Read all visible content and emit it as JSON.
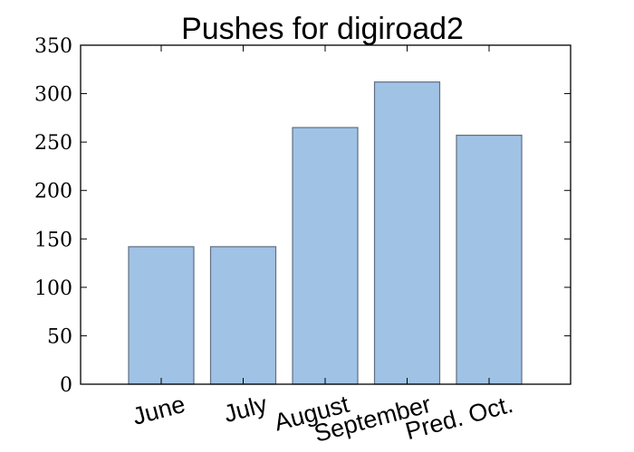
{
  "chart_data": {
    "type": "bar",
    "title": "Pushes for digiroad2",
    "xlabel": "",
    "ylabel": "",
    "categories": [
      "June",
      "July",
      "August",
      "September",
      "Pred. Oct."
    ],
    "values": [
      142,
      142,
      265,
      312,
      257
    ],
    "ylim": [
      0,
      350
    ],
    "yticks": [
      0,
      50,
      100,
      150,
      200,
      250,
      300,
      350
    ],
    "ytick_labels": [
      "0",
      "50",
      "100",
      "150",
      "200",
      "250",
      "300",
      "350"
    ],
    "grid": false,
    "legend": "none",
    "colors": {
      "bar_fill": "#a0c2e5",
      "bar_edge": "#5f6f80",
      "axis": "#000000"
    }
  }
}
